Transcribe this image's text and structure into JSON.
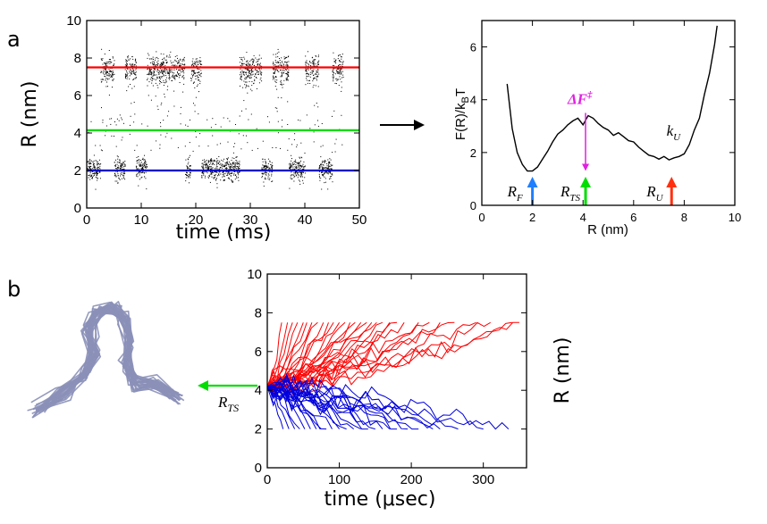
{
  "panel_labels": {
    "a": "a",
    "b": "b"
  },
  "chart_data": [
    {
      "id": "trajectory",
      "type": "scatter",
      "xlabel": "time (ms)",
      "ylabel": "R (nm)",
      "xlim": [
        0,
        50
      ],
      "ylim": [
        0,
        10
      ],
      "xticks": [
        "0",
        "10",
        "20",
        "30",
        "40",
        "50"
      ],
      "yticks": [
        "0",
        "2",
        "4",
        "6",
        "8",
        "10"
      ],
      "points_color": "#000000",
      "description_series": "single-molecule extension trajectory hopping between R≈2 nm and R≈7.5 nm states",
      "hlines": [
        {
          "name": "R_U",
          "y": 7.5,
          "color": "#ff0000"
        },
        {
          "name": "R_TS",
          "y": 4.15,
          "color": "#00dd00"
        },
        {
          "name": "R_F",
          "y": 2.0,
          "color": "#0000cc"
        }
      ],
      "dwell_segments": [
        {
          "state": "low",
          "t_start": 0.0,
          "t_end": 2.5
        },
        {
          "state": "high",
          "t_start": 2.5,
          "t_end": 5.0
        },
        {
          "state": "low",
          "t_start": 5.0,
          "t_end": 7.0
        },
        {
          "state": "high",
          "t_start": 7.0,
          "t_end": 9.0
        },
        {
          "state": "low",
          "t_start": 9.0,
          "t_end": 11.0
        },
        {
          "state": "high",
          "t_start": 11.0,
          "t_end": 18.0
        },
        {
          "state": "low",
          "t_start": 18.0,
          "t_end": 19.0
        },
        {
          "state": "high",
          "t_start": 19.0,
          "t_end": 21.0
        },
        {
          "state": "low",
          "t_start": 21.0,
          "t_end": 28.0
        },
        {
          "state": "high",
          "t_start": 28.0,
          "t_end": 32.0
        },
        {
          "state": "low",
          "t_start": 32.0,
          "t_end": 34.0
        },
        {
          "state": "high",
          "t_start": 34.0,
          "t_end": 37.0
        },
        {
          "state": "low",
          "t_start": 37.0,
          "t_end": 40.0
        },
        {
          "state": "high",
          "t_start": 40.0,
          "t_end": 42.5
        },
        {
          "state": "low",
          "t_start": 42.5,
          "t_end": 45.0
        },
        {
          "state": "high",
          "t_start": 45.0,
          "t_end": 47.0
        }
      ]
    },
    {
      "id": "free_energy",
      "type": "line",
      "xlabel": "R (nm)",
      "ylabel": "F(R)/k",
      "ylabel_sub": "B",
      "ylabel_tail": "T",
      "xlim": [
        0,
        10
      ],
      "ylim": [
        0,
        7
      ],
      "xticks": [
        "0",
        "2",
        "4",
        "6",
        "8",
        "10"
      ],
      "yticks": [
        "0",
        "2",
        "4",
        "6"
      ],
      "line_color": "#000000",
      "x": [
        1.0,
        1.2,
        1.4,
        1.6,
        1.8,
        2.0,
        2.2,
        2.4,
        2.6,
        2.8,
        3.0,
        3.2,
        3.4,
        3.6,
        3.8,
        4.0,
        4.2,
        4.4,
        4.6,
        4.8,
        5.0,
        5.2,
        5.4,
        5.6,
        5.8,
        6.0,
        6.2,
        6.4,
        6.6,
        6.8,
        7.0,
        7.2,
        7.4,
        7.6,
        7.8,
        8.0,
        8.2,
        8.4,
        8.6,
        8.8,
        9.0,
        9.2,
        9.3
      ],
      "y": [
        4.6,
        2.9,
        2.0,
        1.55,
        1.3,
        1.3,
        1.45,
        1.75,
        2.05,
        2.4,
        2.7,
        2.85,
        3.05,
        3.2,
        3.3,
        3.05,
        3.4,
        3.3,
        3.1,
        2.95,
        2.85,
        2.65,
        2.75,
        2.6,
        2.45,
        2.4,
        2.2,
        2.05,
        1.9,
        1.85,
        1.75,
        1.85,
        1.72,
        1.8,
        1.85,
        1.95,
        2.3,
        2.85,
        3.3,
        4.2,
        5.0,
        6.1,
        6.8
      ],
      "annotations": {
        "barrier_label": "ΔF",
        "barrier_sup": "‡",
        "barrier_x": 4.1,
        "barrier_top": 3.5,
        "barrier_bottom": 1.3,
        "barrier_color": "#e020e0",
        "ku_label": "k",
        "ku_sub": "U",
        "markers": [
          {
            "label": "R",
            "sub": "F",
            "x": 2.0,
            "color": "#1e7fff"
          },
          {
            "label": "R",
            "sub": "TS",
            "x": 4.1,
            "color": "#00dd00"
          },
          {
            "label": "R",
            "sub": "U",
            "x": 7.5,
            "color": "#ff3010"
          }
        ]
      }
    },
    {
      "id": "tp_trajectories",
      "type": "line",
      "xlabel": "time (μsec)",
      "ylabel": "R (nm)",
      "xlim": [
        0,
        360
      ],
      "ylim": [
        0,
        10
      ],
      "xticks": [
        "0",
        "100",
        "200",
        "300"
      ],
      "xtick_values": [
        0,
        100,
        200,
        300
      ],
      "yticks": [
        "0",
        "2",
        "4",
        "6",
        "8",
        "10"
      ],
      "start_value": 4.2,
      "series_colors": {
        "unfolding": "#ff0000",
        "folding": "#0000dd"
      },
      "unfolding_end_value": 7.5,
      "folding_end_value": 2.0,
      "unfolding_end_times": [
        20,
        28,
        35,
        42,
        50,
        55,
        62,
        70,
        78,
        85,
        92,
        100,
        108,
        115,
        122,
        130,
        138,
        145,
        152,
        160,
        170,
        180,
        190,
        210,
        225,
        240,
        260,
        290,
        310,
        340,
        350
      ],
      "folding_end_times": [
        22,
        30,
        38,
        45,
        52,
        60,
        68,
        75,
        82,
        90,
        100,
        110,
        120,
        130,
        140,
        150,
        160,
        170,
        180,
        195,
        210,
        230,
        240,
        265,
        300,
        335
      ]
    }
  ],
  "left_arrow_label": "R",
  "left_arrow_sub": "TS",
  "colors": {
    "structure": "#8b90b8",
    "arrow_green": "#00dd00"
  }
}
